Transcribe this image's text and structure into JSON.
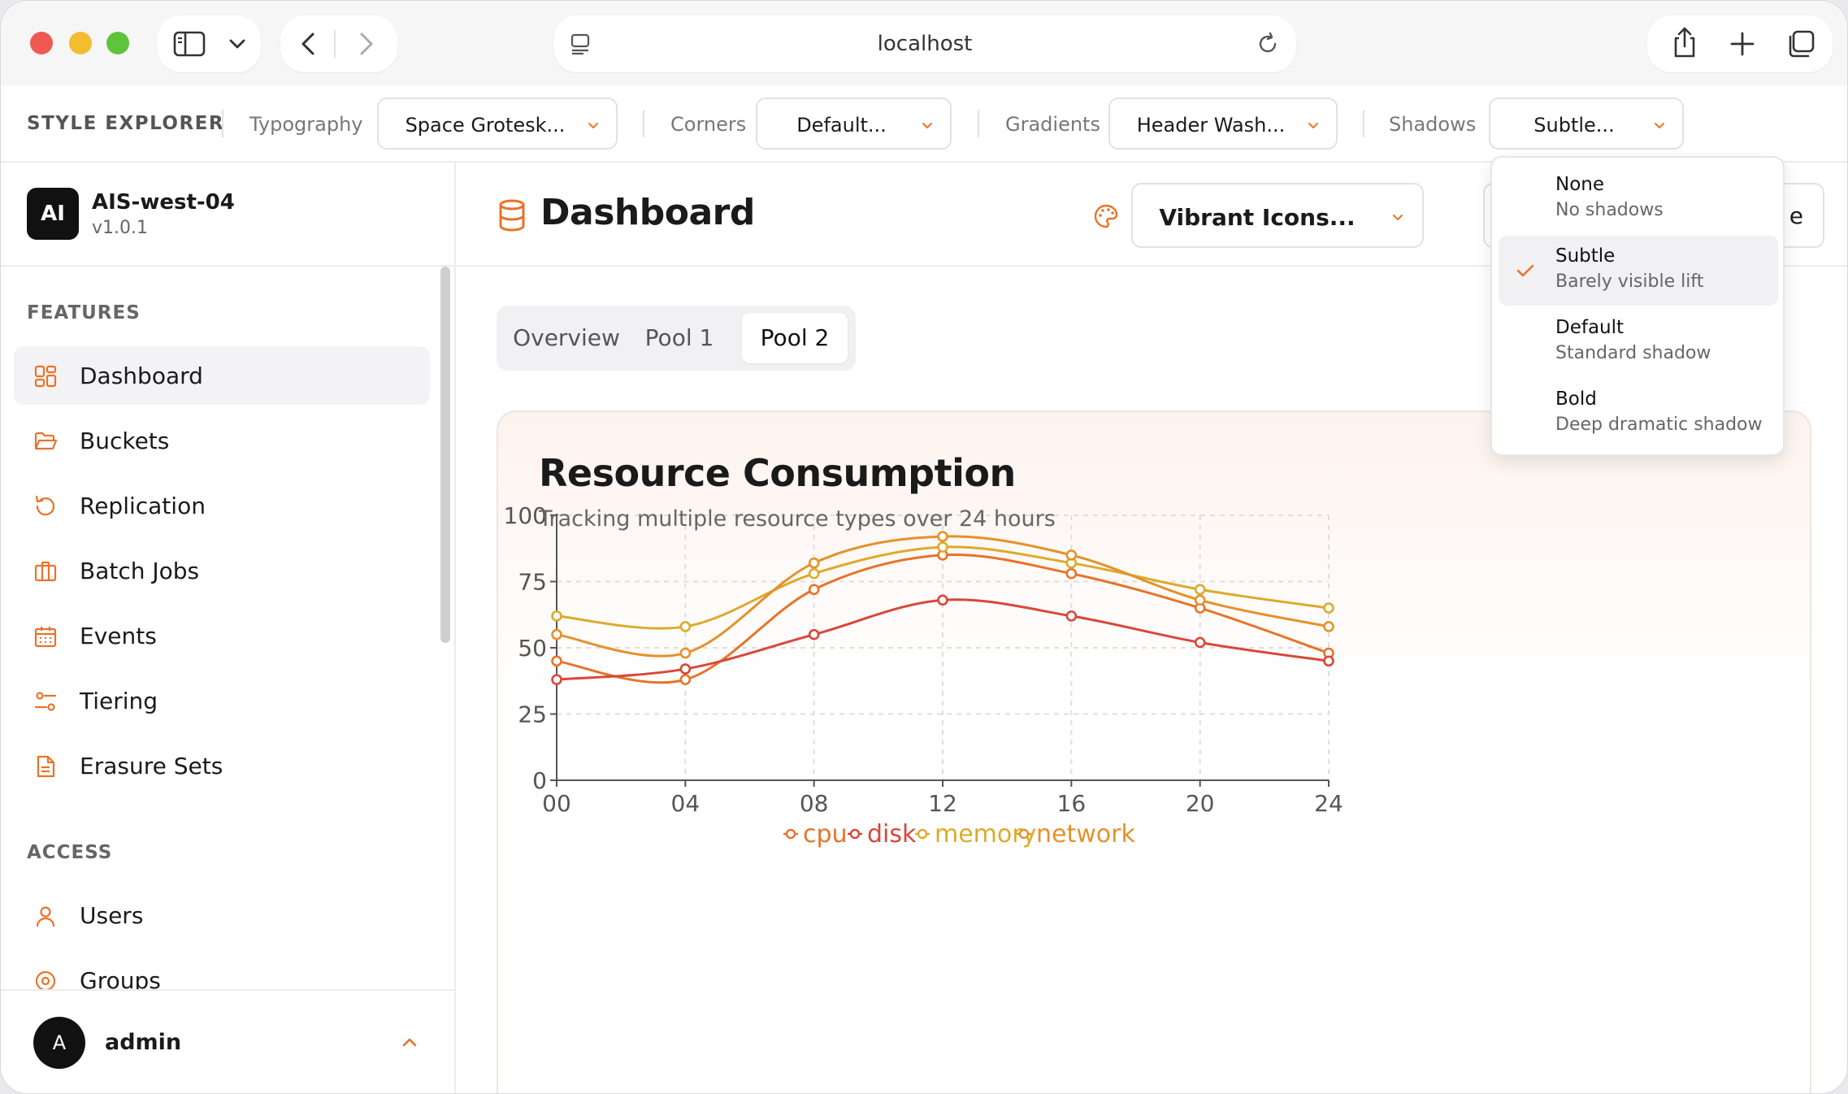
{
  "browser": {
    "url": "localhost"
  },
  "toolbar": {
    "title": "STYLE EXPLORER",
    "controls": [
      {
        "label": "Typography",
        "value": "Space Grotesk..."
      },
      {
        "label": "Corners",
        "value": "Default..."
      },
      {
        "label": "Gradients",
        "value": "Header Wash..."
      },
      {
        "label": "Shadows",
        "value": "Subtle..."
      }
    ]
  },
  "sidebar": {
    "logo": "AI",
    "app_name": "AIS-west-04",
    "version": "v1.0.1",
    "sections": [
      {
        "label": "FEATURES",
        "items": [
          {
            "label": "Dashboard",
            "icon": "layout-grid-icon",
            "active": true
          },
          {
            "label": "Buckets",
            "icon": "folder-open-icon"
          },
          {
            "label": "Replication",
            "icon": "rotate-ccw-icon"
          },
          {
            "label": "Batch Jobs",
            "icon": "briefcase-icon"
          },
          {
            "label": "Events",
            "icon": "calendar-icon"
          },
          {
            "label": "Tiering",
            "icon": "sliders-icon"
          },
          {
            "label": "Erasure Sets",
            "icon": "file-text-icon"
          }
        ]
      },
      {
        "label": "ACCESS",
        "items": [
          {
            "label": "Users",
            "icon": "user-icon"
          },
          {
            "label": "Groups",
            "icon": "target-icon"
          }
        ]
      }
    ],
    "user": {
      "initial": "A",
      "name": "admin"
    }
  },
  "main": {
    "title": "Dashboard",
    "icon_style_select": "Vibrant Icons...",
    "second_button_fragment": "e",
    "tabs": [
      "Overview",
      "Pool 1",
      "Pool 2"
    ],
    "active_tab": "Pool 2"
  },
  "dropdown": {
    "options": [
      {
        "name": "None",
        "desc": "No shadows"
      },
      {
        "name": "Subtle",
        "desc": "Barely visible lift",
        "selected": true
      },
      {
        "name": "Default",
        "desc": "Standard shadow"
      },
      {
        "name": "Bold",
        "desc": "Deep dramatic shadow"
      }
    ]
  },
  "colors": {
    "accent": "#e8732a",
    "cpu": "#e8732a",
    "disk": "#d9473a",
    "memory": "#dcab2c",
    "network": "#e6912a"
  },
  "chart_data": {
    "type": "line",
    "title": "Resource Consumption",
    "subtitle": "Tracking multiple resource types over 24 hours",
    "x": [
      "00",
      "04",
      "08",
      "12",
      "16",
      "20",
      "24"
    ],
    "y_ticks": [
      0,
      25,
      50,
      75,
      100
    ],
    "ylim": [
      0,
      100
    ],
    "grid": true,
    "legend_position": "bottom",
    "series": [
      {
        "name": "cpu",
        "values": [
          45,
          38,
          72,
          85,
          78,
          65,
          48
        ]
      },
      {
        "name": "disk",
        "values": [
          38,
          42,
          55,
          68,
          62,
          52,
          45
        ]
      },
      {
        "name": "memory",
        "values": [
          62,
          58,
          78,
          88,
          82,
          72,
          65
        ]
      },
      {
        "name": "network",
        "values": [
          55,
          48,
          82,
          92,
          85,
          68,
          58
        ]
      }
    ]
  }
}
